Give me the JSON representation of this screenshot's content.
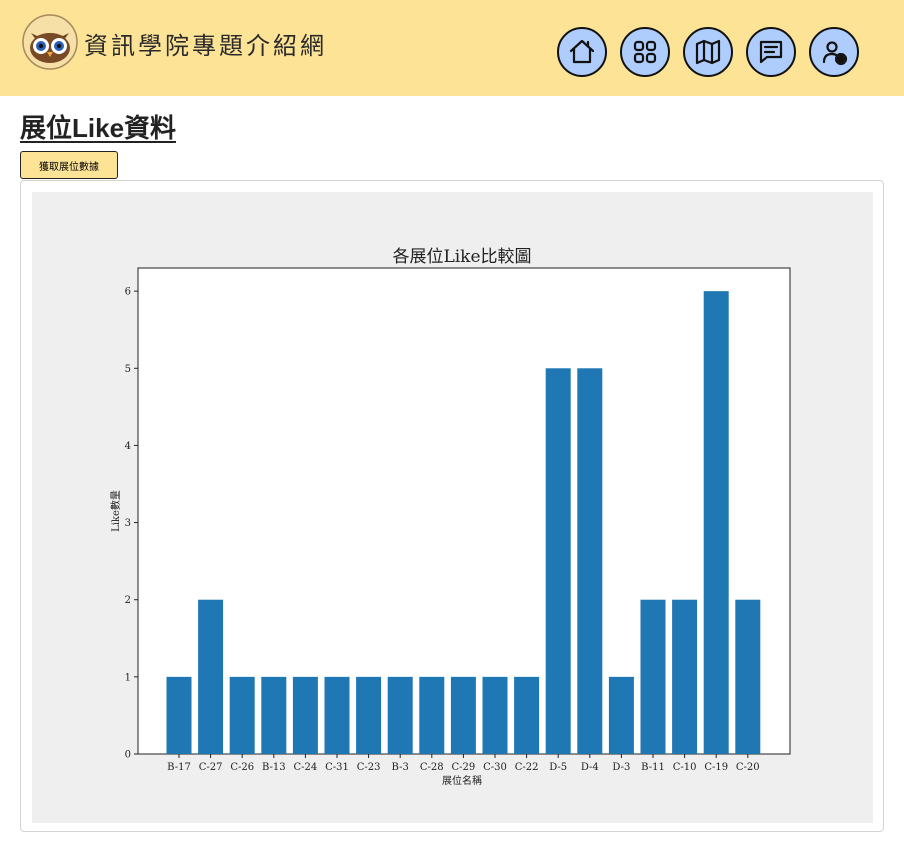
{
  "header": {
    "site_title": "資訊學院專題介紹網",
    "nav": [
      {
        "name": "home-icon"
      },
      {
        "name": "grid-icon"
      },
      {
        "name": "map-icon"
      },
      {
        "name": "message-icon"
      },
      {
        "name": "user-settings-icon"
      }
    ],
    "colors": {
      "background": "#fde396",
      "nav_button": "#aecdfc"
    }
  },
  "main": {
    "page_title": "展位Like資料",
    "fetch_button_label": "獲取展位數據"
  },
  "chart_data": {
    "type": "bar",
    "title": "各展位Like比較圖",
    "xlabel": "展位名稱",
    "ylabel": "Like數量",
    "categories": [
      "B-17",
      "C-27",
      "C-26",
      "B-13",
      "C-24",
      "C-31",
      "C-23",
      "B-3",
      "C-28",
      "C-29",
      "C-30",
      "C-22",
      "D-5",
      "D-4",
      "D-3",
      "B-11",
      "C-10",
      "C-19",
      "C-20"
    ],
    "values": [
      1,
      2,
      1,
      1,
      1,
      1,
      1,
      1,
      1,
      1,
      1,
      1,
      5,
      5,
      1,
      2,
      2,
      6,
      2
    ],
    "yticks": [
      0,
      1,
      2,
      3,
      4,
      5,
      6
    ],
    "ylim": [
      0,
      6.3
    ],
    "bar_color": "#1f77b4",
    "grid": false
  }
}
